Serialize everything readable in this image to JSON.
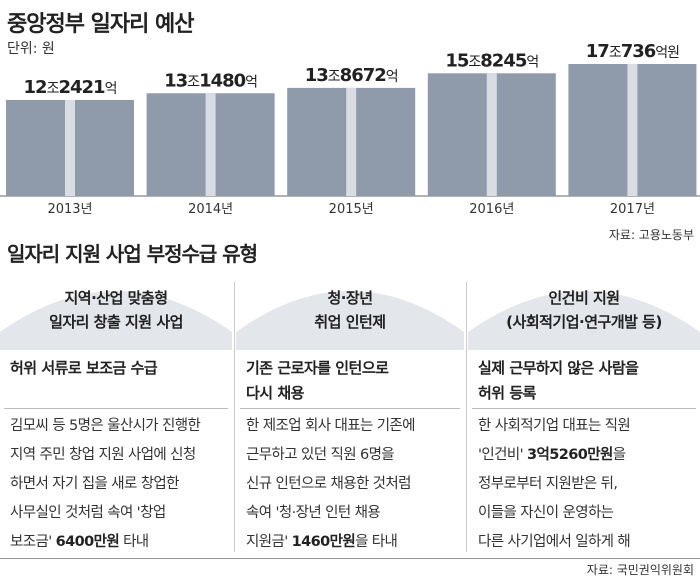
{
  "chart_data": {
    "type": "bar",
    "title": "중앙정부 일자리 예산",
    "unit": "단위: 원",
    "categories": [
      "2013년",
      "2014년",
      "2015년",
      "2016년",
      "2017년"
    ],
    "values": [
      12.2421,
      13.148,
      13.8672,
      15.8245,
      17.0736
    ],
    "value_unit": "조원",
    "labels": [
      {
        "big": "12",
        "s1": "조",
        "big2": "2421",
        "s2": "억"
      },
      {
        "big": "13",
        "s1": "조",
        "big2": "1480",
        "s2": "억"
      },
      {
        "big": "13",
        "s1": "조",
        "big2": "8672",
        "s2": "억"
      },
      {
        "big": "15",
        "s1": "조",
        "big2": "8245",
        "s2": "억"
      },
      {
        "big": "17",
        "s1": "조",
        "big2": "736",
        "s2": "억원"
      }
    ],
    "source": "자료: 고용노동부"
  },
  "section": {
    "title": "일자리 지원 사업 부정수급 유형",
    "columns": [
      {
        "head1": "지역·산업 맞춤형",
        "head2": "일자리 창출 지원 사업",
        "sub1": "허위 서류로 보조금 수급",
        "sub2": "",
        "body": [
          {
            "t": "김모씨 등 5명은 울산시가 진행한"
          },
          {
            "t": "지역 주민 창업 지원 사업에 신청"
          },
          {
            "t": "하면서 자기 집을 새로 창업한"
          },
          {
            "t": "사무실인 것처럼 속여 '창업"
          },
          {
            "t": "보조금' ",
            "b": "6400만원",
            "t2": " 타내"
          }
        ]
      },
      {
        "head1": "청·장년",
        "head2": "취업 인턴제",
        "sub1": "기존 근로자를 인턴으로",
        "sub2": "다시 채용",
        "body": [
          {
            "t": "한 제조업 회사 대표는 기존에"
          },
          {
            "t": "근무하고 있던 직원 6명을"
          },
          {
            "t": "신규 인턴으로 채용한 것처럼"
          },
          {
            "t": "속여 '청·장년 인턴 채용"
          },
          {
            "t": "지원금' ",
            "b": "1460만원",
            "t2": "을 타내"
          }
        ]
      },
      {
        "head1": "인건비 지원",
        "head2": "(사회적기업·연구개발 등)",
        "sub1": "실제 근무하지 않은 사람을",
        "sub2": "허위 등록",
        "body": [
          {
            "t": "한 사회적기업 대표는 직원"
          },
          {
            "t": "'인건비' ",
            "b": "3억5260만원",
            "t2": "을"
          },
          {
            "t": "정부로부터 지원받은 뒤,"
          },
          {
            "t": "이들을 자신이 운영하는"
          },
          {
            "t": "다른 사기업에서 일하게 해"
          }
        ]
      }
    ]
  },
  "footer_source": "자료: 국민권익위원회"
}
